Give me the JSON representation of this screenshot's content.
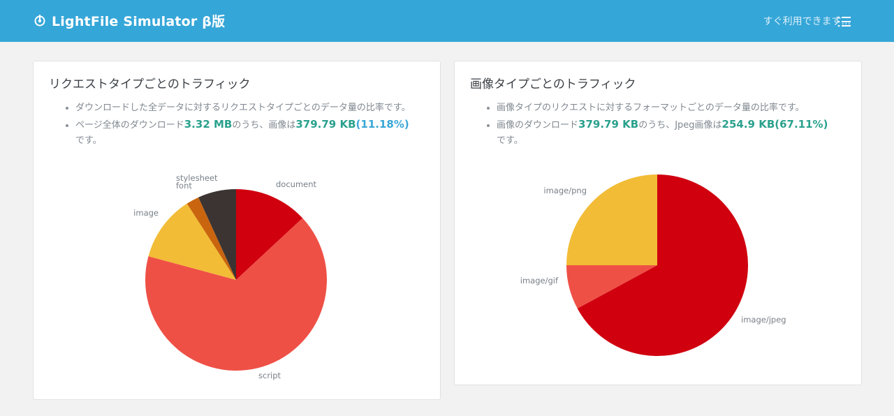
{
  "header": {
    "title": "LightFile Simulator β版",
    "status": "すぐ利用できます..."
  },
  "card_request": {
    "title": "リクエストタイプごとのトラフィック",
    "bullet1": "ダウンロードした全データに対するリクエストタイプごとのデータ量の比率です。",
    "bullet2_pre": "ページ全体のダウンロード",
    "bullet2_total": "3.32 MB",
    "bullet2_mid": "のうち、画像は",
    "bullet2_image": "379.79 KB",
    "bullet2_pct": "(11.18%)",
    "bullet2_post": "です。"
  },
  "card_image": {
    "title": "画像タイプごとのトラフィック",
    "bullet1": "画像タイプのリクエストに対するフォーマットごとのデータ量の比率です。",
    "bullet2_pre": "画像のダウンロード",
    "bullet2_total": "379.79 KB",
    "bullet2_mid": "のうち、Jpeg画像は",
    "bullet2_jpeg": "254.9 KB(67.11%)",
    "bullet2_post": "です。"
  },
  "colors": {
    "header_bg": "#35a6d8",
    "highlight_green": "#2aa18d",
    "highlight_blue": "#3aa7d6"
  },
  "chart_data": [
    {
      "type": "pie",
      "title": "",
      "unit": "percent",
      "slices": [
        {
          "label": "document",
          "value": 12.5,
          "color": "#d0000f"
        },
        {
          "label": "script",
          "value": 63.2,
          "color": "#ef5046"
        },
        {
          "label": "image",
          "value": 11.18,
          "color": "#f2bc36"
        },
        {
          "label": "font",
          "value": 2.2,
          "color": "#c9650e"
        },
        {
          "label": "stylesheet",
          "value": 6.5,
          "color": "#3c3432"
        }
      ]
    },
    {
      "type": "pie",
      "title": "",
      "unit": "percent",
      "slices": [
        {
          "label": "image/jpeg",
          "value": 67.11,
          "color": "#d0000f"
        },
        {
          "label": "image/gif",
          "value": 7.89,
          "color": "#ef5046"
        },
        {
          "label": "image/png",
          "value": 25.0,
          "color": "#f2bc36"
        }
      ]
    }
  ]
}
